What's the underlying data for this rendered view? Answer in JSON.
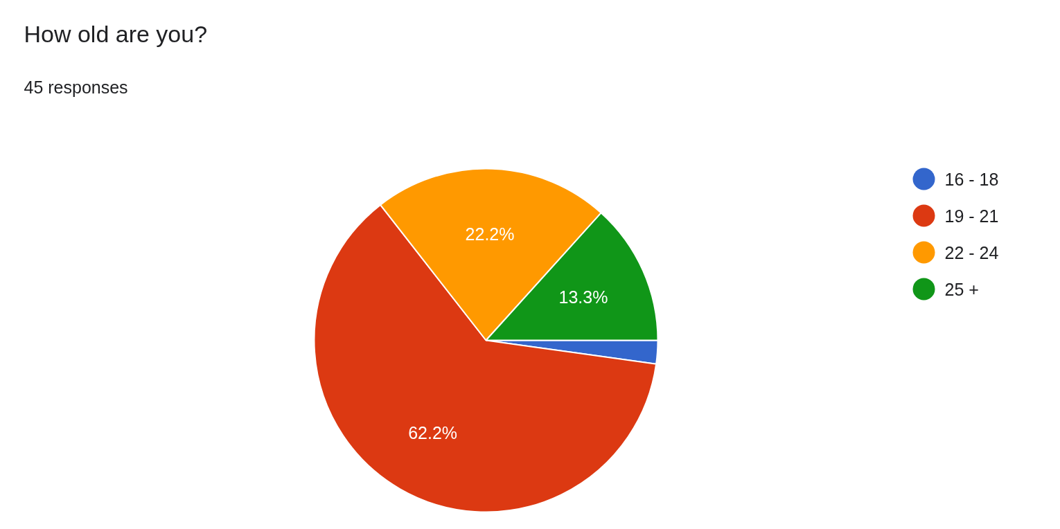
{
  "chart_data": {
    "type": "pie",
    "title": "How old are you?",
    "subtitle": "45 responses",
    "categories": [
      "16 - 18",
      "19 - 21",
      "22 - 24",
      "25 +"
    ],
    "values": [
      2.2,
      62.2,
      22.2,
      13.3
    ],
    "colors": [
      "#3366cc",
      "#dc3912",
      "#ff9900",
      "#109618"
    ],
    "value_labels": [
      null,
      "62.2%",
      "22.2%",
      "13.3%"
    ],
    "legend": "right"
  }
}
